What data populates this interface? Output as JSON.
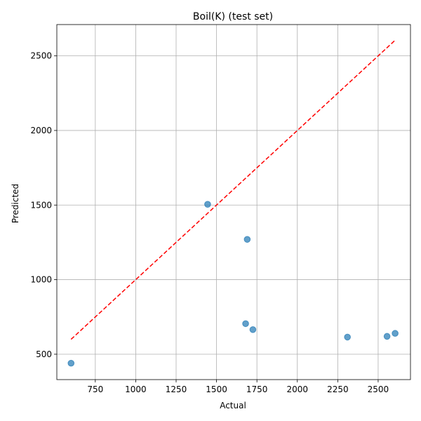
{
  "chart_data": {
    "type": "scatter",
    "title": "Boil(K) (test set)",
    "xlabel": "Actual",
    "ylabel": "Predicted",
    "xlim": [
      512,
      2700
    ],
    "ylim": [
      330,
      2710
    ],
    "xticks": [
      750,
      1000,
      1250,
      1500,
      1750,
      2000,
      2250,
      2500
    ],
    "yticks": [
      500,
      1000,
      1500,
      2000,
      2500
    ],
    "xtick_labels": [
      "750",
      "1000",
      "1250",
      "1500",
      "1750",
      "2000",
      "2250",
      "2500"
    ],
    "ytick_labels": [
      "500",
      "1000",
      "1500",
      "2000",
      "2500"
    ],
    "grid": true,
    "points": [
      {
        "x": 600,
        "y": 440
      },
      {
        "x": 1445,
        "y": 1505
      },
      {
        "x": 1690,
        "y": 1270
      },
      {
        "x": 1680,
        "y": 705
      },
      {
        "x": 1725,
        "y": 665
      },
      {
        "x": 2310,
        "y": 615
      },
      {
        "x": 2555,
        "y": 620
      },
      {
        "x": 2605,
        "y": 640
      }
    ],
    "reference_line": {
      "x": [
        600,
        2605
      ],
      "y": [
        600,
        2605
      ],
      "style": "dashed",
      "color": "#ff0000"
    },
    "point_color": "#1f77b4",
    "point_alpha": 0.7
  }
}
